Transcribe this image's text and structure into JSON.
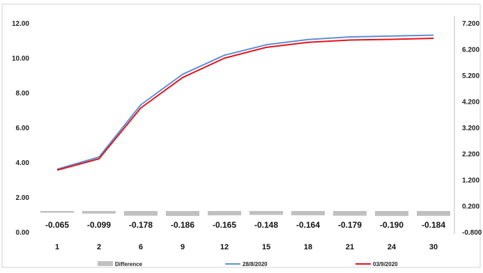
{
  "chart_data": {
    "type": "bar+line",
    "title": "",
    "categories": [
      "1",
      "2",
      "6",
      "9",
      "12",
      "15",
      "18",
      "21",
      "24",
      "30"
    ],
    "left_axis": {
      "min": 0,
      "max": 12,
      "step": 2,
      "tick_labels": [
        "0.00",
        "2.00",
        "4.00",
        "6.00",
        "8.00",
        "10.00",
        "12.00"
      ]
    },
    "right_axis": {
      "min": -0.8,
      "max": 7.2,
      "step": 1.0,
      "tick_labels": [
        "-0.800",
        "0.200",
        "1.200",
        "2.200",
        "3.200",
        "4.200",
        "5.200",
        "6.200",
        "7.200"
      ]
    },
    "series": [
      {
        "name": "Difference",
        "kind": "bar",
        "axis": "right",
        "color": "#c0c0c0",
        "values": [
          -0.065,
          -0.099,
          -0.178,
          -0.186,
          -0.165,
          -0.148,
          -0.164,
          -0.179,
          -0.19,
          -0.184
        ],
        "labels": [
          "-0.065",
          "-0.099",
          "-0.178",
          "-0.186",
          "-0.165",
          "-0.148",
          "-0.164",
          "-0.179",
          "-0.190",
          "-0.184"
        ]
      },
      {
        "name": "28/8/2020",
        "kind": "line",
        "axis": "left",
        "color": "#5b8fd6",
        "values": [
          3.6,
          4.3,
          7.3,
          9.05,
          10.15,
          10.75,
          11.05,
          11.2,
          11.25,
          11.3
        ]
      },
      {
        "name": "03/9/2020",
        "kind": "line",
        "axis": "left",
        "color": "#e8101a",
        "values": [
          3.55,
          4.2,
          7.12,
          8.87,
          9.98,
          10.6,
          10.89,
          11.02,
          11.06,
          11.12
        ]
      }
    ],
    "legend_position": "bottom",
    "grid": false
  }
}
